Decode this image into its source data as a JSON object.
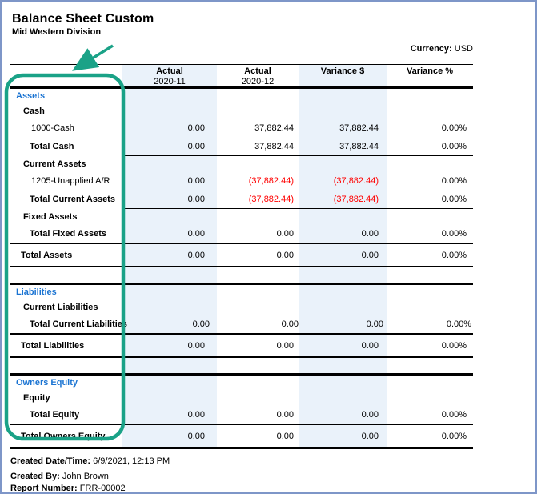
{
  "page": {
    "title": "Balance Sheet Custom",
    "subtitle": "Mid Western Division",
    "currency_label": "Currency:",
    "currency_value": "USD"
  },
  "table": {
    "columns": [
      {
        "line1": "Actual",
        "line2": "2020-11",
        "shaded": true
      },
      {
        "line1": "Actual",
        "line2": "2020-12",
        "shaded": false
      },
      {
        "line1": "Variance $",
        "line2": "",
        "shaded": true
      },
      {
        "line1": "Variance %",
        "line2": "",
        "shaded": false
      }
    ],
    "rows": [
      {
        "type": "section",
        "label": "Assets"
      },
      {
        "type": "group",
        "label": "Cash"
      },
      {
        "type": "account",
        "label": "1000-Cash",
        "values": [
          "0.00",
          "37,882.44",
          "37,882.44",
          "0.00%"
        ],
        "negative": [
          false,
          false,
          false,
          false
        ]
      },
      {
        "type": "total",
        "label": "Total Cash",
        "values": [
          "0.00",
          "37,882.44",
          "37,882.44",
          "0.00%"
        ],
        "negative": [
          false,
          false,
          false,
          false
        ]
      },
      {
        "type": "rule",
        "style": "partial"
      },
      {
        "type": "group",
        "label": "Current Assets"
      },
      {
        "type": "account",
        "label": "1205-Unapplied A/R",
        "values": [
          "0.00",
          "(37,882.44)",
          "(37,882.44)",
          "0.00%"
        ],
        "negative": [
          false,
          true,
          true,
          false
        ]
      },
      {
        "type": "total",
        "label": "Total Current Assets",
        "values": [
          "0.00",
          "(37,882.44)",
          "(37,882.44)",
          "0.00%"
        ],
        "negative": [
          false,
          true,
          true,
          false
        ]
      },
      {
        "type": "rule",
        "style": "partial"
      },
      {
        "type": "group",
        "label": "Fixed Assets"
      },
      {
        "type": "total",
        "label": "Total Fixed Assets",
        "values": [
          "0.00",
          "0.00",
          "0.00",
          "0.00%"
        ],
        "negative": [
          false,
          false,
          false,
          false
        ]
      },
      {
        "type": "rule",
        "style": "full"
      },
      {
        "type": "grand",
        "label": "Total Assets",
        "values": [
          "0.00",
          "0.00",
          "0.00",
          "0.00%"
        ],
        "negative": [
          false,
          false,
          false,
          false
        ]
      },
      {
        "type": "rule",
        "style": "full"
      },
      {
        "type": "gap"
      },
      {
        "type": "rule",
        "style": "thick"
      },
      {
        "type": "section",
        "label": "Liabilities"
      },
      {
        "type": "group",
        "label": "Current Liabilities"
      },
      {
        "type": "total",
        "label": "Total Current Liabilities",
        "values": [
          "0.00",
          "0.00",
          "0.00",
          "0.00%"
        ],
        "negative": [
          false,
          false,
          false,
          false
        ]
      },
      {
        "type": "rule",
        "style": "full"
      },
      {
        "type": "grand",
        "label": "Total Liabilities",
        "values": [
          "0.00",
          "0.00",
          "0.00",
          "0.00%"
        ],
        "negative": [
          false,
          false,
          false,
          false
        ]
      },
      {
        "type": "rule",
        "style": "full"
      },
      {
        "type": "gap"
      },
      {
        "type": "rule",
        "style": "thick"
      },
      {
        "type": "section",
        "label": "Owners Equity"
      },
      {
        "type": "group",
        "label": "Equity"
      },
      {
        "type": "total",
        "label": "Total Equity",
        "values": [
          "0.00",
          "0.00",
          "0.00",
          "0.00%"
        ],
        "negative": [
          false,
          false,
          false,
          false
        ]
      },
      {
        "type": "rule",
        "style": "full"
      },
      {
        "type": "grand",
        "label": "Total Owners Equity",
        "values": [
          "0.00",
          "0.00",
          "0.00",
          "0.00%"
        ],
        "negative": [
          false,
          false,
          false,
          false
        ]
      },
      {
        "type": "rule",
        "style": "thick"
      }
    ]
  },
  "footer": {
    "created_datetime_label": "Created Date/Time:",
    "created_datetime_value": "6/9/2021, 12:13 PM",
    "created_by_label": "Created By:",
    "created_by_value": "John Brown",
    "report_number_label": "Report Number:",
    "report_number_value": "FRR-00002"
  },
  "colors": {
    "section_text": "#1B74D2",
    "negative_text": "#FF0000",
    "shaded_column": "#EAF2FA",
    "annotation": "#1AA287",
    "page_border": "#7E96C8"
  }
}
